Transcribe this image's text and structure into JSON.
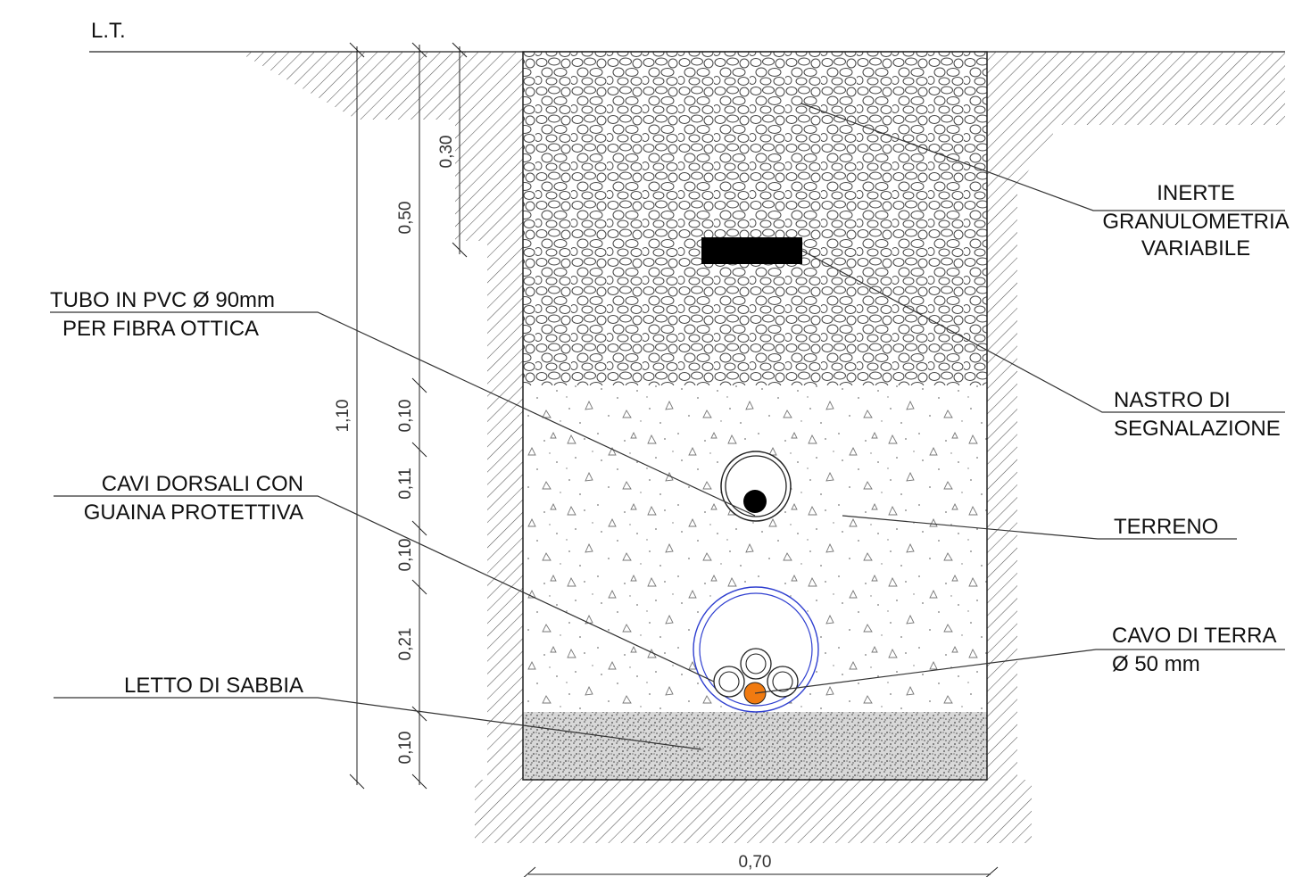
{
  "title": "L.T.",
  "labels": {
    "inerte": [
      "INERTE",
      "GRANULOMETRIA",
      "VARIABILE"
    ],
    "nastro": [
      "NASTRO DI",
      "SEGNALAZIONE"
    ],
    "terreno": [
      "TERRENO"
    ],
    "cavo_terra": [
      "CAVO DI TERRA",
      "Ø 50 mm"
    ],
    "tubo_pvc": [
      "TUBO IN PVC Ø 90mm",
      "PER FIBRA OTTICA"
    ],
    "cavi_dorsali": [
      "CAVI DORSALI CON",
      "GUAINA PROTETTIVA"
    ],
    "letto_sabbia": [
      "LETTO DI SABBIA"
    ]
  },
  "dimensions": {
    "total_depth": "1,10",
    "gravel_depth": "0,50",
    "tape_depth": "0,30",
    "layer_a": "0,10",
    "layer_b": "0,11",
    "layer_c": "0,10",
    "layer_d": "0,21",
    "layer_e": "0,10",
    "width": "0,70"
  },
  "colors": {
    "ground_line": "#222222",
    "hatch": "#555555",
    "conduit_blue": "#2f3fd0",
    "earth_cable_orange": "#f07a10",
    "fibre_cable_black": "#000000",
    "tape_black": "#000000"
  }
}
